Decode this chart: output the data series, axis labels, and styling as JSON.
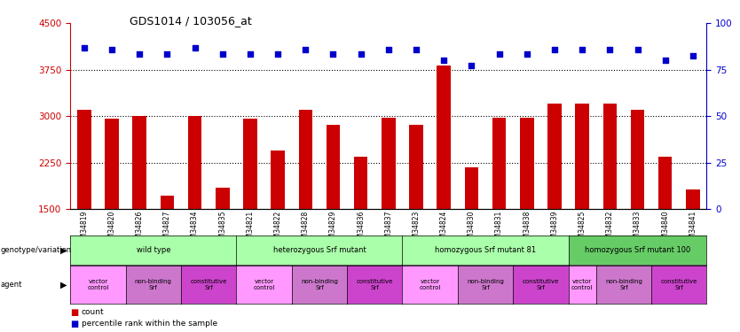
{
  "title": "GDS1014 / 103056_at",
  "samples": [
    "GSM34819",
    "GSM34820",
    "GSM34826",
    "GSM34827",
    "GSM34834",
    "GSM34835",
    "GSM34821",
    "GSM34822",
    "GSM34828",
    "GSM34829",
    "GSM34836",
    "GSM34837",
    "GSM34823",
    "GSM34824",
    "GSM34830",
    "GSM34831",
    "GSM34838",
    "GSM34839",
    "GSM34825",
    "GSM34832",
    "GSM34833",
    "GSM34840",
    "GSM34841"
  ],
  "counts": [
    3100,
    2960,
    3000,
    1720,
    3010,
    1850,
    2960,
    2450,
    3100,
    2860,
    2350,
    2980,
    2860,
    3820,
    2170,
    2980,
    2980,
    3200,
    3200,
    3200,
    3100,
    2340,
    1820
  ],
  "pct_left_axis": [
    4100,
    4080,
    4000,
    4000,
    4100,
    4000,
    4000,
    4000,
    4080,
    4000,
    4000,
    4080,
    4080,
    3900,
    3820,
    4000,
    4000,
    4080,
    4080,
    4080,
    4080,
    3900,
    3980
  ],
  "ylim_left": [
    1500,
    4500
  ],
  "ylim_right": [
    0,
    100
  ],
  "yticks_left": [
    1500,
    2250,
    3000,
    3750,
    4500
  ],
  "yticks_right": [
    0,
    25,
    50,
    75,
    100
  ],
  "bar_color": "#cc0000",
  "dot_color": "#0000cc",
  "groups": [
    {
      "label": "wild type",
      "start": 0,
      "end": 6,
      "color": "#aaffaa"
    },
    {
      "label": "heterozygous Srf mutant",
      "start": 6,
      "end": 12,
      "color": "#aaffaa"
    },
    {
      "label": "homozygous Srf mutant 81",
      "start": 12,
      "end": 18,
      "color": "#aaffaa"
    },
    {
      "label": "homozygous Srf mutant 100",
      "start": 18,
      "end": 23,
      "color": "#66cc66"
    }
  ],
  "agents": [
    {
      "label": "vector\ncontrol",
      "start": 0,
      "end": 2,
      "color": "#ff99ff"
    },
    {
      "label": "non-binding\nSrf",
      "start": 2,
      "end": 4,
      "color": "#cc77cc"
    },
    {
      "label": "constitutive\nSrf",
      "start": 4,
      "end": 6,
      "color": "#cc44cc"
    },
    {
      "label": "vector\ncontrol",
      "start": 6,
      "end": 8,
      "color": "#ff99ff"
    },
    {
      "label": "non-binding\nSrf",
      "start": 8,
      "end": 10,
      "color": "#cc77cc"
    },
    {
      "label": "constitutive\nSrf",
      "start": 10,
      "end": 12,
      "color": "#cc44cc"
    },
    {
      "label": "vector\ncontrol",
      "start": 12,
      "end": 14,
      "color": "#ff99ff"
    },
    {
      "label": "non-binding\nSrf",
      "start": 14,
      "end": 16,
      "color": "#cc77cc"
    },
    {
      "label": "constitutive\nSrf",
      "start": 16,
      "end": 18,
      "color": "#cc44cc"
    },
    {
      "label": "vector\ncontrol",
      "start": 18,
      "end": 19,
      "color": "#ff99ff"
    },
    {
      "label": "non-binding\nSrf",
      "start": 19,
      "end": 21,
      "color": "#cc77cc"
    },
    {
      "label": "constitutive\nSrf",
      "start": 21,
      "end": 23,
      "color": "#cc44cc"
    }
  ],
  "legend_items": [
    {
      "label": "count",
      "color": "#cc0000"
    },
    {
      "label": "percentile rank within the sample",
      "color": "#0000cc"
    }
  ],
  "background_color": "#ffffff",
  "plot_bg_color": "#ffffff"
}
